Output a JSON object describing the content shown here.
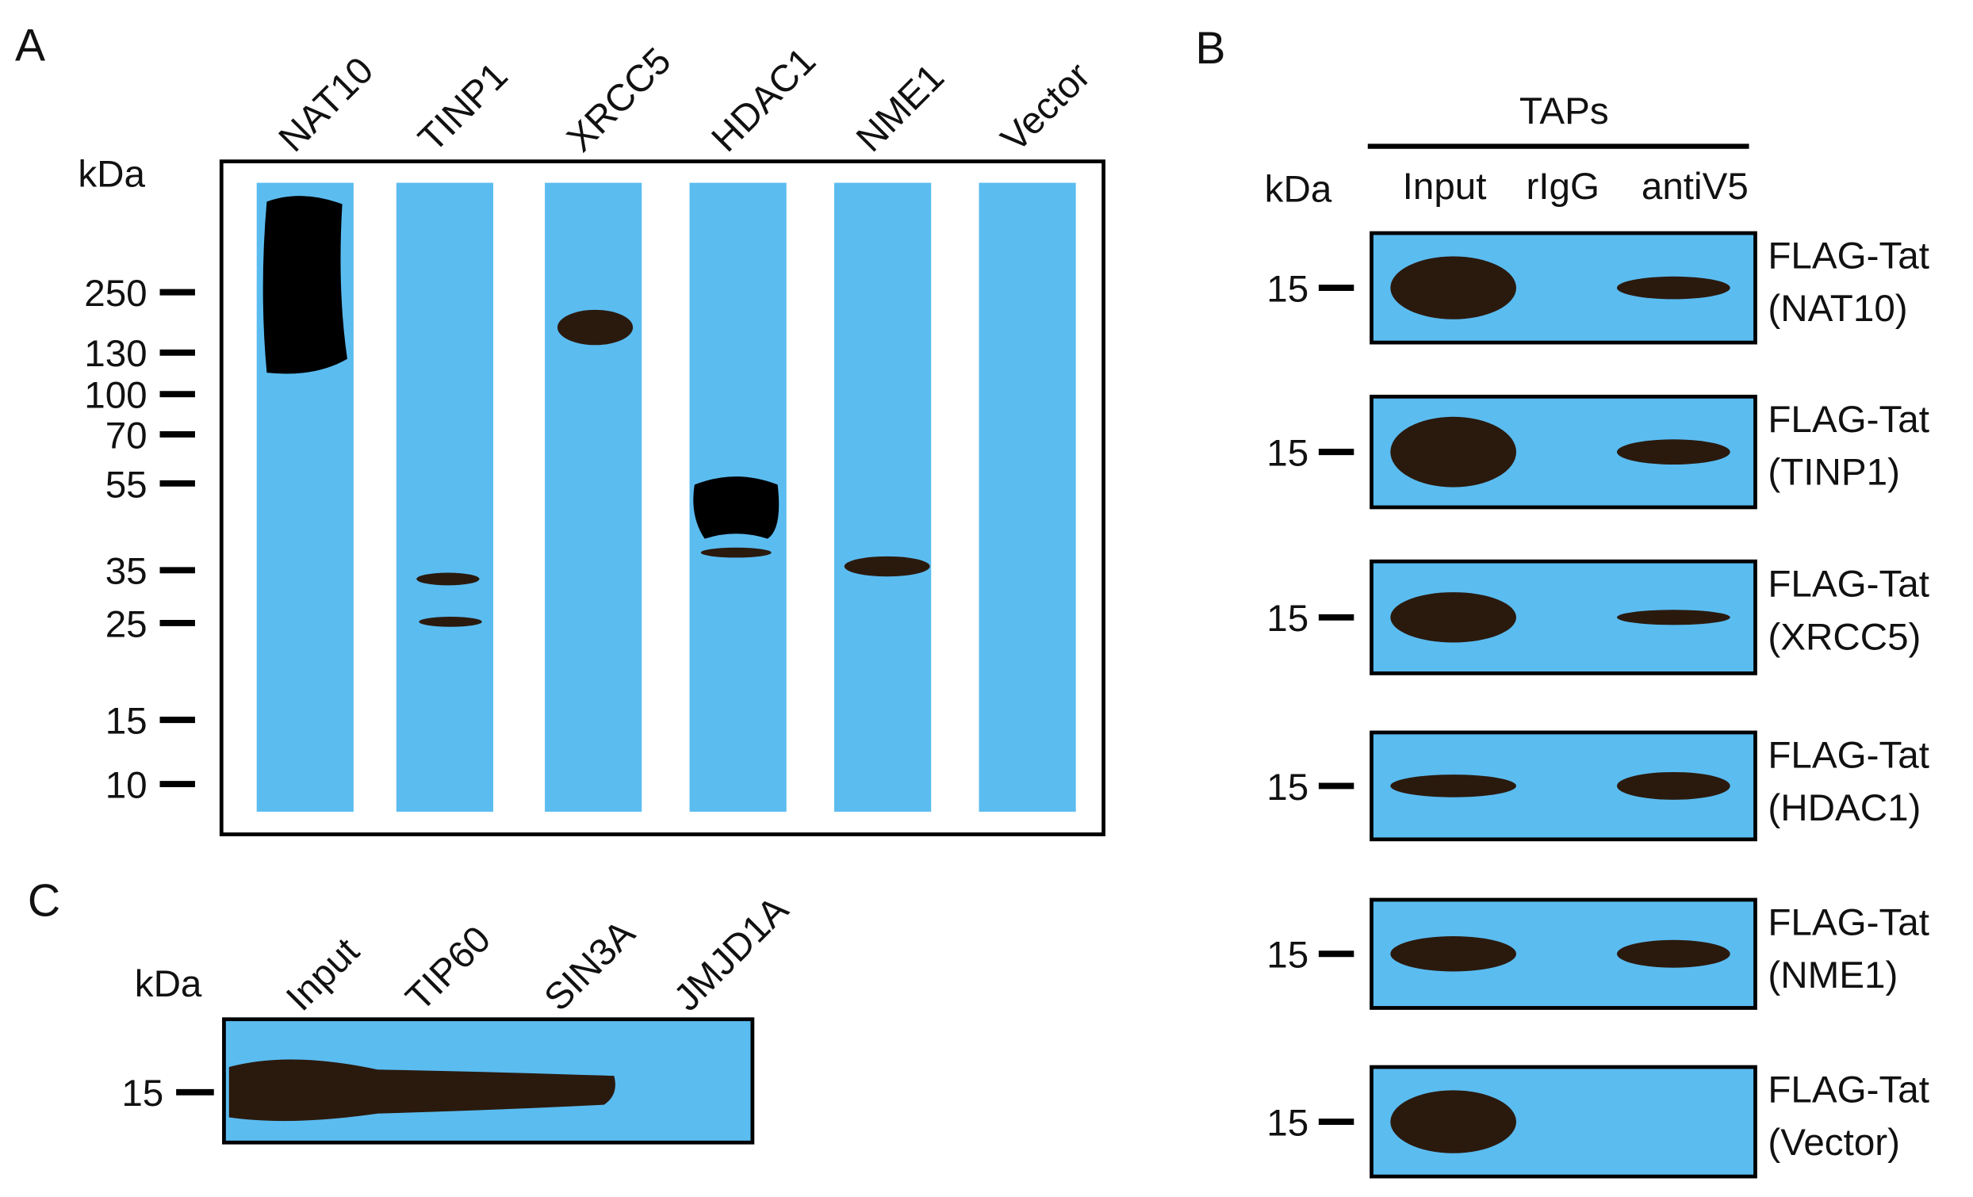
{
  "panel_a": {
    "label": "A",
    "unit": "kDa",
    "lanes": [
      "NAT10",
      "TINP1",
      "XRCC5",
      "HDAC1",
      "NME1",
      "Vector"
    ],
    "markers": [
      "250",
      "130",
      "100",
      "70",
      "55",
      "35",
      "25",
      "15",
      "10"
    ]
  },
  "panel_b": {
    "label": "B",
    "group": "TAPs",
    "unit": "kDa",
    "columns": [
      "Input",
      "rIgG",
      "antiV5"
    ],
    "blots": [
      {
        "marker": "15",
        "target": "FLAG-Tat",
        "bait": "(NAT10)"
      },
      {
        "marker": "15",
        "target": "FLAG-Tat",
        "bait": "(TINP1)"
      },
      {
        "marker": "15",
        "target": "FLAG-Tat",
        "bait": "(XRCC5)"
      },
      {
        "marker": "15",
        "target": "FLAG-Tat",
        "bait": "(HDAC1)"
      },
      {
        "marker": "15",
        "target": "FLAG-Tat",
        "bait": "(NME1)"
      },
      {
        "marker": "15",
        "target": "FLAG-Tat",
        "bait": "(Vector)"
      }
    ]
  },
  "panel_c": {
    "label": "C",
    "unit": "kDa",
    "lanes": [
      "Input",
      "TIP60",
      "SIN3A",
      "JMJD1A"
    ],
    "marker": "15"
  }
}
